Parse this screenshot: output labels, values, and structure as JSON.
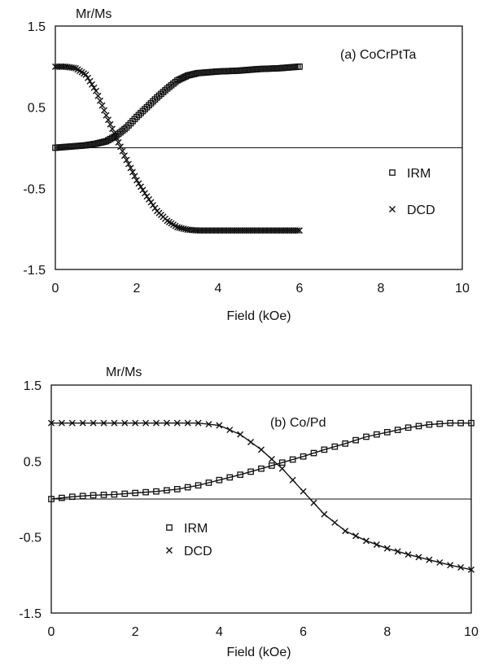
{
  "chart_data": [
    {
      "type": "scatter",
      "panel_label": "(a) CoCrPtTa",
      "ylabel": "Mr/Ms",
      "xlabel": "Field (kOe)",
      "xlim": [
        0,
        10
      ],
      "ylim": [
        -1.5,
        1.5
      ],
      "x_ticks": [
        "0",
        "2",
        "4",
        "6",
        "8",
        "10"
      ],
      "y_ticks": [
        "1.5",
        "0.5",
        "-0.5",
        "-1.5"
      ],
      "zero_line": true,
      "legend_position": "right-center",
      "series": [
        {
          "name": "IRM",
          "marker": "square",
          "x": [
            0,
            0.25,
            0.5,
            0.75,
            1.0,
            1.25,
            1.5,
            1.75,
            2.0,
            2.25,
            2.5,
            2.75,
            3.0,
            3.25,
            3.5,
            3.75,
            4.0,
            4.5,
            5.0,
            5.5,
            6.0
          ],
          "y": [
            0.0,
            0.01,
            0.02,
            0.03,
            0.05,
            0.08,
            0.15,
            0.25,
            0.38,
            0.5,
            0.62,
            0.73,
            0.83,
            0.89,
            0.92,
            0.93,
            0.94,
            0.95,
            0.97,
            0.98,
            1.0
          ]
        },
        {
          "name": "DCD",
          "marker": "x",
          "x": [
            0,
            0.25,
            0.5,
            0.75,
            1.0,
            1.25,
            1.5,
            1.75,
            2.0,
            2.25,
            2.5,
            2.75,
            3.0,
            3.25,
            3.5,
            4.0,
            4.5,
            5.0,
            5.5,
            6.0
          ],
          "y": [
            1.0,
            1.0,
            0.98,
            0.9,
            0.7,
            0.4,
            0.12,
            -0.15,
            -0.4,
            -0.6,
            -0.78,
            -0.9,
            -0.98,
            -1.01,
            -1.02,
            -1.02,
            -1.02,
            -1.02,
            -1.02,
            -1.02
          ]
        }
      ]
    },
    {
      "type": "line",
      "panel_label": "(b) Co/Pd",
      "ylabel": "Mr/Ms",
      "xlabel": "Field (kOe)",
      "xlim": [
        0,
        10
      ],
      "ylim": [
        -1.5,
        1.5
      ],
      "x_ticks": [
        "0",
        "2",
        "4",
        "6",
        "8",
        "10"
      ],
      "y_ticks": [
        "1.5",
        "0.5",
        "-0.5",
        "-1.5"
      ],
      "zero_line": true,
      "legend_position": "center-left",
      "series": [
        {
          "name": "IRM",
          "marker": "square",
          "x": [
            0,
            0.5,
            1.0,
            1.5,
            2.0,
            2.5,
            3.0,
            3.5,
            4.0,
            4.5,
            5.0,
            5.5,
            6.0,
            6.5,
            7.0,
            7.5,
            8.0,
            8.5,
            9.0,
            9.5,
            10.0
          ],
          "y": [
            0.0,
            0.03,
            0.05,
            0.06,
            0.08,
            0.1,
            0.13,
            0.18,
            0.25,
            0.32,
            0.4,
            0.48,
            0.56,
            0.65,
            0.73,
            0.82,
            0.88,
            0.94,
            0.98,
            1.0,
            1.0
          ]
        },
        {
          "name": "DCD",
          "marker": "x",
          "x": [
            0,
            0.5,
            1.0,
            1.5,
            2.0,
            2.5,
            3.0,
            3.5,
            4.0,
            4.5,
            5.0,
            5.5,
            6.0,
            6.5,
            7.0,
            7.5,
            8.0,
            8.5,
            9.0,
            9.5,
            10.0
          ],
          "y": [
            1.0,
            1.0,
            1.0,
            1.0,
            1.0,
            1.0,
            1.0,
            1.0,
            0.97,
            0.85,
            0.65,
            0.4,
            0.1,
            -0.2,
            -0.42,
            -0.55,
            -0.65,
            -0.73,
            -0.8,
            -0.87,
            -0.93
          ]
        }
      ]
    }
  ]
}
